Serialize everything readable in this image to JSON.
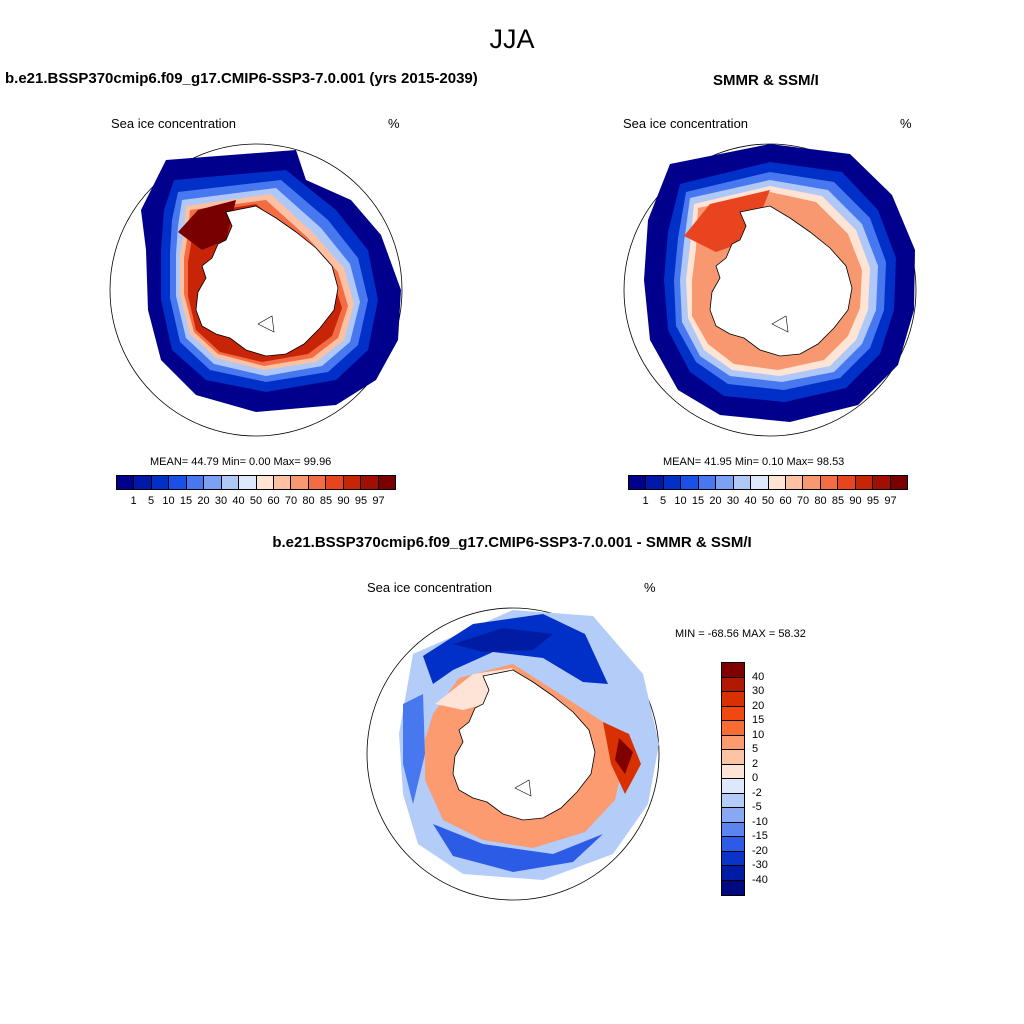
{
  "season": "JJA",
  "panels": {
    "model": {
      "title": "b.e21.BSSP370cmip6.f09_g17.CMIP6-SSP3-7.0.001 (yrs 2015-2039)",
      "variable": "Sea ice concentration",
      "units": "%",
      "stats": "MEAN=  44.79  Min=   0.00  Max=  99.96"
    },
    "obs": {
      "title": "SMMR & SSM/I",
      "variable": "Sea ice concentration",
      "units": "%",
      "stats": "MEAN=  41.95  Min=   0.10  Max=  98.53"
    },
    "diff": {
      "title": "b.e21.BSSP370cmip6.f09_g17.CMIP6-SSP3-7.0.001 - SMMR & SSM/I",
      "variable": "Sea ice concentration",
      "units": "%",
      "minmax": "MIN = -68.56 MAX =  58.32"
    }
  },
  "colorbar_conc": {
    "labels": [
      "1",
      "5",
      "10",
      "15",
      "20",
      "30",
      "40",
      "50",
      "60",
      "70",
      "80",
      "85",
      "90",
      "95",
      "97"
    ],
    "colors": [
      "#00008c",
      "#0018a8",
      "#0030c8",
      "#1a50e6",
      "#4878f0",
      "#7ca0f4",
      "#b0c8f8",
      "#dce8fc",
      "#fde4d4",
      "#fcc0a2",
      "#f89870",
      "#f46c44",
      "#e84420",
      "#c82408",
      "#a01000",
      "#780000"
    ]
  },
  "colorbar_diff": {
    "labels": [
      "40",
      "30",
      "20",
      "15",
      "10",
      "5",
      "2",
      "0",
      "-2",
      "-5",
      "-10",
      "-15",
      "-20",
      "-30",
      "-40"
    ],
    "colors": [
      "#800000",
      "#b01800",
      "#d83000",
      "#f04810",
      "#f86c34",
      "#fc9a70",
      "#fdc4a4",
      "#fee4d6",
      "#dce8fc",
      "#b4ccf8",
      "#88a8f4",
      "#5a84ee",
      "#2c5ce6",
      "#0a34c8",
      "#001ca4",
      "#000a80"
    ]
  },
  "map_data": {
    "projection": "south polar stereographic",
    "continent": "Antarctica",
    "colors": {
      "open_ocean": "#ffffff",
      "land": "#ffffff",
      "outline": "#000000"
    },
    "model_ice_rings": [
      "#00008c",
      "#0030c8",
      "#4878f0",
      "#b0c8f8",
      "#fcc0a2",
      "#f46c44",
      "#c82408",
      "#780000"
    ],
    "obs_ice_rings": [
      "#00008c",
      "#0030c8",
      "#4878f0",
      "#b0c8f8",
      "#fde4d4",
      "#f89870",
      "#e84420"
    ],
    "diff_fields": [
      "#0030c8",
      "#4878f0",
      "#b4ccf8",
      "#fee4d6",
      "#fc9a70",
      "#f04810",
      "#b01800"
    ]
  }
}
